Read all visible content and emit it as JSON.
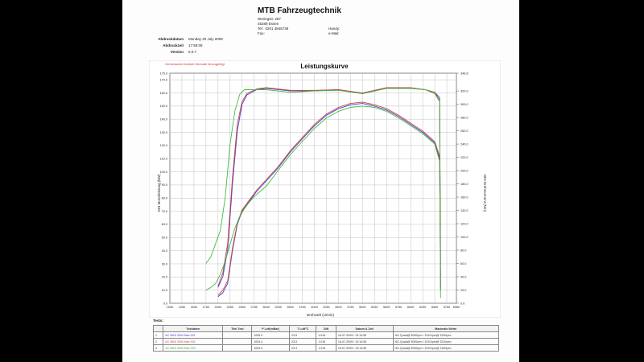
{
  "header": {
    "company": "MTB Fahrzeugtechnik",
    "street": "Woringstr. 287",
    "city": "45289 Essen",
    "tel_label": "Tel:",
    "tel_value": "0201 3845739",
    "fax_label": "Fax:",
    "handy_label": "Handy:",
    "email_label": "e-Mail:"
  },
  "meta": {
    "date_label": "Abdruckdatum",
    "date_value": "Monday 20 July 2009",
    "time_label": "Abdruckzeit",
    "time_value": "17:58:09",
    "version_label": "Version",
    "version_value": "6.0.7"
  },
  "chart_data": {
    "type": "line",
    "title": "Leistungskurve",
    "subtitle": "Gemessener Antrieb Verluste hinzugefügt",
    "xlabel": "Drehzahl (U/min)",
    "ylabel": "DIN Motorleistung (kW)",
    "y2label": "DIN Drehmoment (Nm)",
    "xlim": [
      1000,
      6950
    ],
    "ylim": [
      0,
      175
    ],
    "y2lim": [
      0,
      346.8
    ],
    "grid": true,
    "x_ticks": [
      "1000",
      "1250",
      "1500",
      "1750",
      "2000",
      "2250",
      "2500",
      "2750",
      "3000",
      "3250",
      "3500",
      "3750",
      "4000",
      "4250",
      "4500",
      "4750",
      "5000",
      "5250",
      "5500",
      "5750",
      "6000",
      "6250",
      "6500",
      "6750",
      "6950"
    ],
    "y_ticks": [
      "175.0",
      "170.0",
      "160.0",
      "150.0",
      "140.0",
      "130.0",
      "120.0",
      "110.0",
      "100.0",
      "90.0",
      "80.0",
      "70.0",
      "60.0",
      "50.0",
      "40.0",
      "30.0",
      "20.0",
      "10.0",
      "0.0"
    ],
    "y2_ticks": [
      "346.8",
      "320.0",
      "300.0",
      "280.0",
      "260.0",
      "240.0",
      "220.0",
      "200.0",
      "180.0",
      "160.0",
      "140.0",
      "120.0",
      "100.0",
      "80.0",
      "60.0",
      "40.0",
      "20.0",
      "0.0"
    ],
    "colors": {
      "run1": "#4444cc",
      "run2": "#cc4444",
      "run3": "#44bb44"
    },
    "torque_series": [
      {
        "x": [
          2000,
          2100,
          2200,
          2300,
          2400,
          2500,
          2600,
          2800,
          3000,
          3500,
          4000,
          4500,
          5000,
          5500,
          6000,
          6300,
          6500,
          6600,
          6620
        ],
        "y": [
          24,
          40,
          80,
          180,
          260,
          300,
          314,
          322,
          324,
          320,
          320,
          322,
          316,
          324,
          324,
          322,
          318,
          310,
          40
        ]
      },
      {
        "x": [
          2000,
          2100,
          2200,
          2300,
          2400,
          2500,
          2600,
          2800,
          3000,
          3500,
          4000,
          4500,
          5000,
          5500,
          6000,
          6300,
          6500,
          6600,
          6620
        ],
        "y": [
          26,
          46,
          90,
          190,
          270,
          304,
          316,
          323,
          325,
          321,
          321,
          322,
          317,
          325,
          325,
          322,
          318,
          306,
          60
        ]
      },
      {
        "x": [
          1750,
          1850,
          1950,
          2050,
          2150,
          2250,
          2350,
          2450,
          2550,
          2650,
          2800,
          3000,
          3500,
          4000,
          4500,
          5000,
          5500,
          6000,
          6300,
          6500,
          6600,
          6620
        ],
        "y": [
          60,
          70,
          90,
          110,
          160,
          240,
          290,
          315,
          322,
          322,
          322,
          322,
          318,
          320,
          321,
          316,
          324,
          324,
          322,
          316,
          304,
          20
        ]
      }
    ],
    "power_series": [
      {
        "x": [
          2000,
          2100,
          2200,
          2300,
          2400,
          2500,
          2600,
          2700,
          2800,
          3000,
          3250,
          3500,
          3750,
          4000,
          4250,
          4500,
          4750,
          5000,
          5250,
          5500,
          5750,
          6000,
          6250,
          6500,
          6600,
          6620
        ],
        "y": [
          5,
          8,
          15,
          40,
          60,
          70,
          75,
          80,
          85,
          93,
          103,
          115,
          125,
          135,
          143,
          148,
          151,
          152,
          150,
          147,
          142,
          136,
          130,
          122,
          110,
          10
        ]
      },
      {
        "x": [
          2000,
          2100,
          2200,
          2300,
          2400,
          2500,
          2600,
          2700,
          2800,
          3000,
          3250,
          3500,
          3750,
          4000,
          4250,
          4500,
          4750,
          5000,
          5250,
          5500,
          5750,
          6000,
          6250,
          6500,
          6600,
          6620
        ],
        "y": [
          6,
          10,
          17,
          42,
          61,
          71,
          76,
          81,
          86,
          94,
          104,
          116,
          126,
          136,
          144,
          149,
          152,
          153,
          151,
          148,
          143,
          137,
          131,
          123,
          112,
          12
        ]
      },
      {
        "x": [
          1750,
          1850,
          1950,
          2050,
          2150,
          2250,
          2350,
          2450,
          2550,
          2650,
          2750,
          2900,
          3000,
          3250,
          3500,
          3750,
          4000,
          4250,
          4500,
          4750,
          5000,
          5250,
          5500,
          5750,
          6000,
          6250,
          6500,
          6600,
          6620
        ],
        "y": [
          10,
          12,
          15,
          22,
          32,
          45,
          57,
          66,
          72,
          77,
          81,
          86,
          89,
          101,
          113,
          123,
          133,
          141,
          146,
          149,
          150,
          149,
          146,
          141,
          135,
          129,
          121,
          108,
          4
        ]
      }
    ]
  },
  "tests": {
    "label": "Tests:",
    "columns": [
      "",
      "Testdaten",
      "Titel Test",
      "P Luft(mBar)",
      "T Luft°C",
      "DIN",
      "Datum & Zeit",
      "Maximale Werte"
    ],
    "rows": [
      [
        "1",
        "AC MINI 3000 Max 001",
        "",
        "1005.0",
        "23.5",
        "1.016",
        "16-07-2009 / 13:14:55",
        "NG.Quad@ 5000rpm / 3210rpm@ 3200rpm"
      ],
      [
        "2",
        "AC MINI 3000 Max 002",
        "",
        "1004.4",
        "23.5",
        "1.016",
        "16-07-2009 / 13:14:55",
        "NG.Quad@ 5000rpm / 3210rpm@ 3210rpm"
      ],
      [
        "3",
        "AC MINI 3000 Max 003",
        "",
        "1004.0",
        "23.4",
        "1.016",
        "16-07-2009 / 13:14:55",
        "NG.Quad@ 5000rpm / 3210rpm@ 3150rpm"
      ]
    ]
  }
}
